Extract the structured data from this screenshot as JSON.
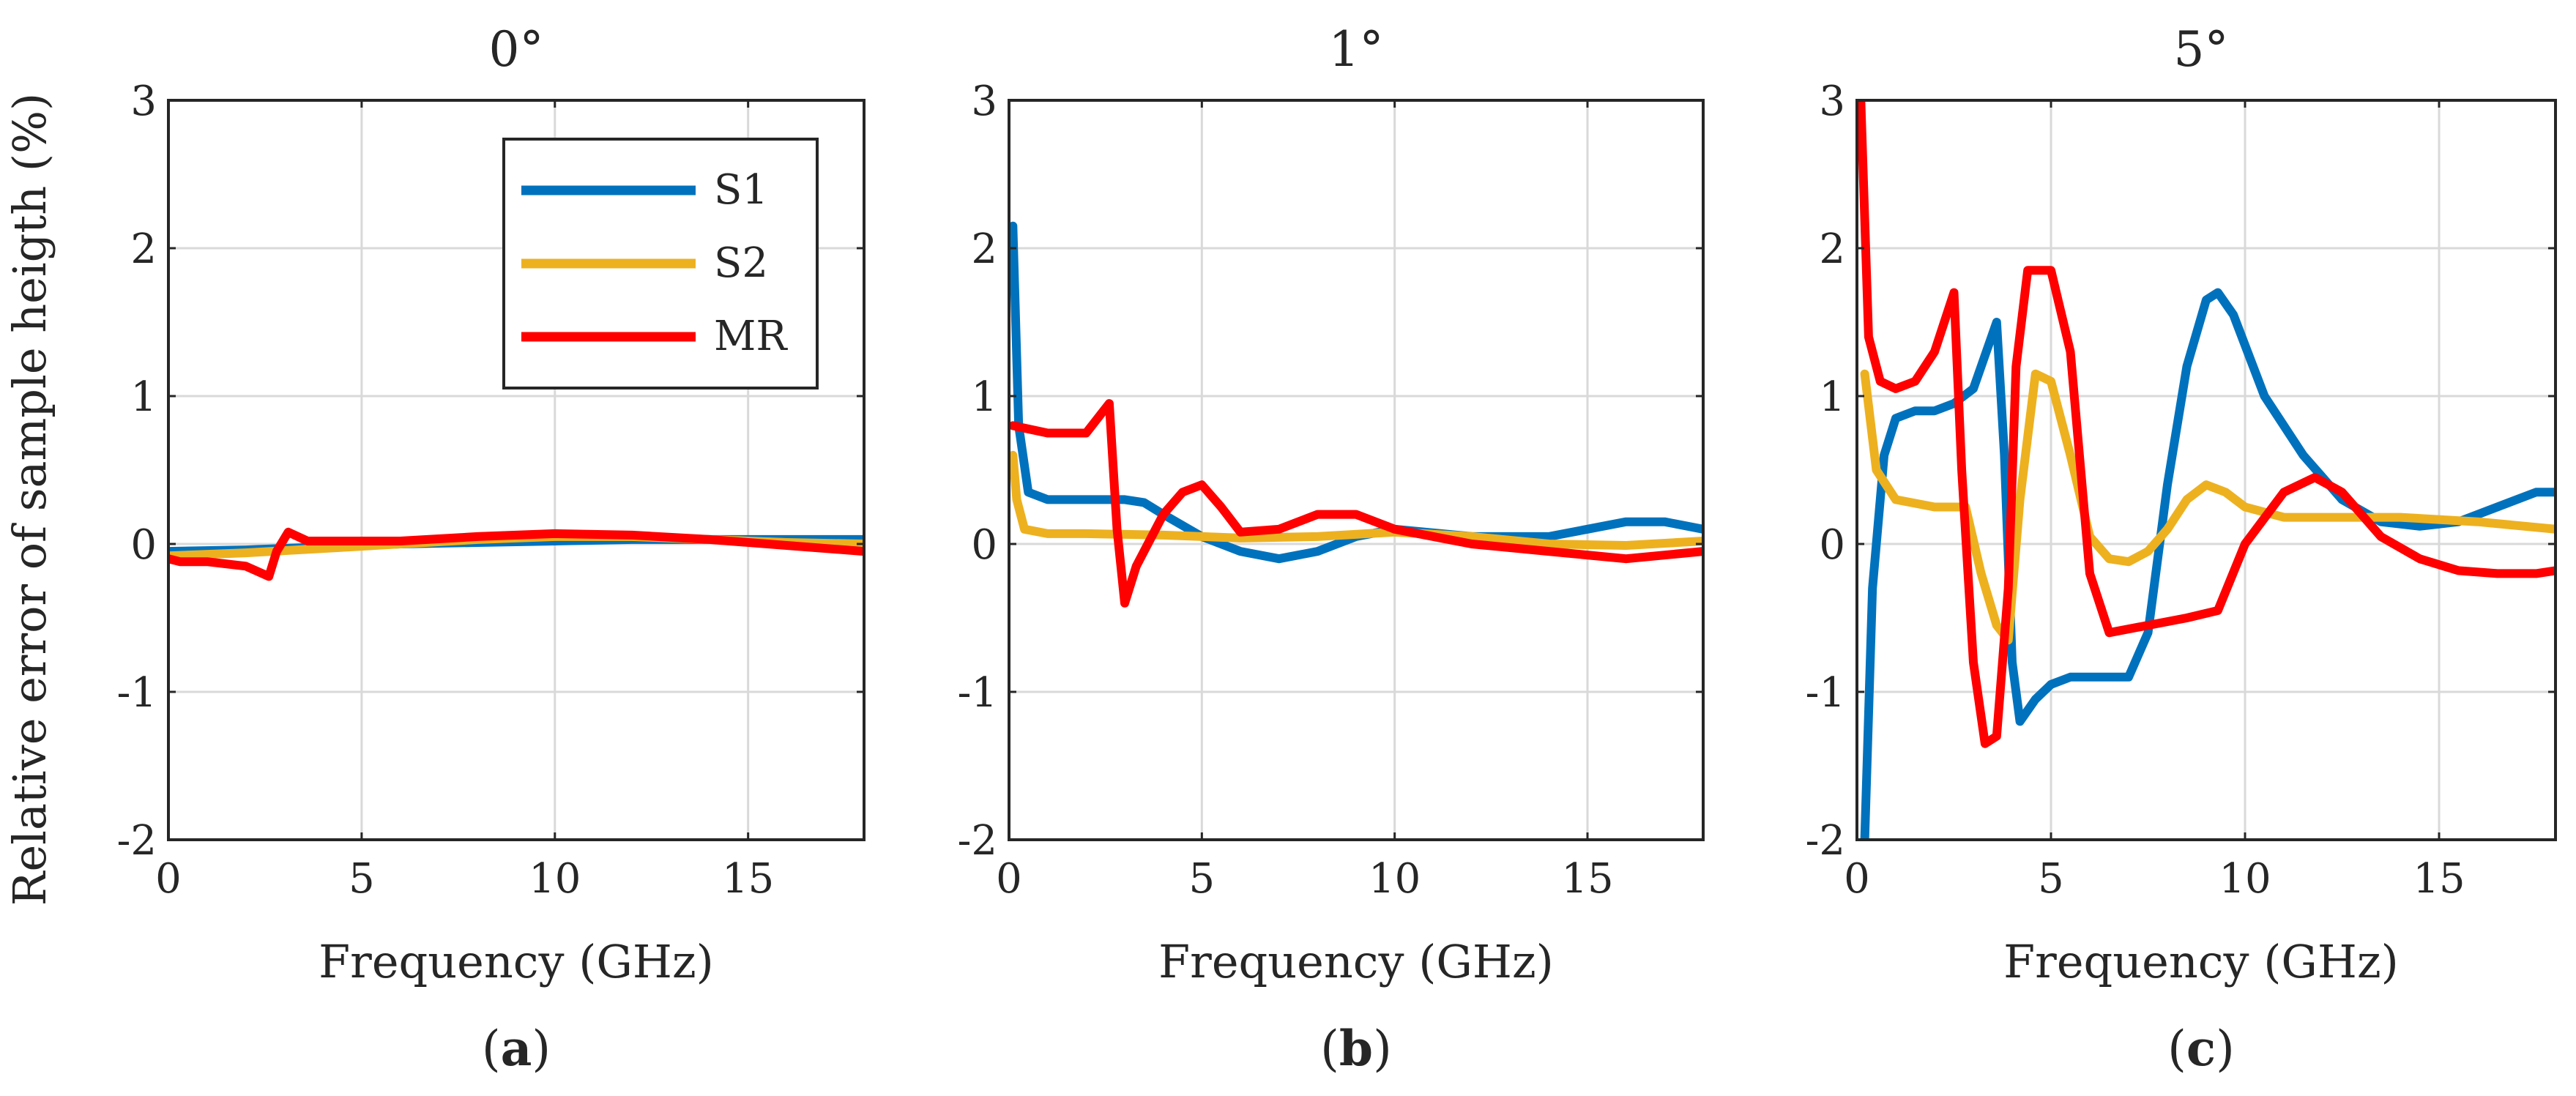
{
  "figure": {
    "ylabel": "Relative error of sample heigth (%)",
    "xlabel": "Frequency (GHz)"
  },
  "colors": {
    "S1": "#0072BD",
    "S2": "#EDB120",
    "MR": "#FF0000",
    "grid": "#d9d9d9",
    "axis": "#262626"
  },
  "chart_data": [
    {
      "type": "line",
      "title": "0°",
      "panel_label": "a",
      "xlabel": "Frequency (GHz)",
      "ylabel": "Relative error of sample heigth (%)",
      "xlim": [
        0,
        18
      ],
      "ylim": [
        -2,
        3
      ],
      "xticks": [
        0,
        5,
        10,
        15
      ],
      "yticks": [
        -2,
        -1,
        0,
        1,
        2,
        3
      ],
      "grid": true,
      "legend": {
        "position": "top-right",
        "entries": [
          "S1",
          "S2",
          "MR"
        ]
      },
      "series": [
        {
          "name": "S1",
          "x": [
            0,
            2,
            4,
            6,
            8,
            10,
            12,
            14,
            16,
            18
          ],
          "y": [
            -0.05,
            -0.04,
            -0.02,
            0.0,
            0.01,
            0.02,
            0.03,
            0.03,
            0.03,
            0.03
          ]
        },
        {
          "name": "S2",
          "x": [
            0,
            2,
            4,
            6,
            8,
            10,
            12,
            14,
            16,
            18
          ],
          "y": [
            -0.08,
            -0.06,
            -0.03,
            0.0,
            0.03,
            0.05,
            0.05,
            0.03,
            0.01,
            0.0
          ]
        },
        {
          "name": "MR",
          "x": [
            0,
            0.3,
            1,
            2,
            2.6,
            2.8,
            3.1,
            3.6,
            5,
            6,
            8,
            10,
            12,
            14,
            16,
            18
          ],
          "y": [
            -0.1,
            -0.12,
            -0.12,
            -0.15,
            -0.22,
            -0.05,
            0.08,
            0.02,
            0.02,
            0.02,
            0.05,
            0.07,
            0.06,
            0.03,
            -0.01,
            -0.05
          ]
        }
      ]
    },
    {
      "type": "line",
      "title": "1°",
      "panel_label": "b",
      "xlabel": "Frequency (GHz)",
      "ylabel": "",
      "xlim": [
        0,
        18
      ],
      "ylim": [
        -2,
        3
      ],
      "xticks": [
        0,
        5,
        10,
        15
      ],
      "yticks": [
        -2,
        -1,
        0,
        1,
        2,
        3
      ],
      "grid": true,
      "series": [
        {
          "name": "S1",
          "x": [
            0.1,
            0.25,
            0.5,
            1,
            2,
            3,
            3.5,
            4,
            5,
            6,
            7,
            8,
            9,
            10,
            12,
            14,
            15,
            16,
            17,
            18
          ],
          "y": [
            2.15,
            0.8,
            0.35,
            0.3,
            0.3,
            0.3,
            0.28,
            0.2,
            0.05,
            -0.05,
            -0.1,
            -0.05,
            0.05,
            0.1,
            0.05,
            0.05,
            0.1,
            0.15,
            0.15,
            0.1
          ]
        },
        {
          "name": "S2",
          "x": [
            0.1,
            0.2,
            0.4,
            1,
            2,
            4,
            6,
            8,
            10,
            12,
            14,
            16,
            18
          ],
          "y": [
            0.6,
            0.3,
            0.1,
            0.07,
            0.07,
            0.06,
            0.04,
            0.05,
            0.08,
            0.05,
            0.0,
            -0.01,
            0.02
          ]
        },
        {
          "name": "MR",
          "x": [
            0.1,
            1,
            2,
            2.6,
            2.8,
            3.0,
            3.3,
            4,
            4.5,
            5,
            5.5,
            6,
            7,
            8,
            9,
            10,
            12,
            14,
            16,
            18
          ],
          "y": [
            0.8,
            0.75,
            0.75,
            0.95,
            0.1,
            -0.4,
            -0.15,
            0.2,
            0.35,
            0.4,
            0.25,
            0.08,
            0.1,
            0.2,
            0.2,
            0.1,
            0.0,
            -0.05,
            -0.1,
            -0.05
          ]
        }
      ]
    },
    {
      "type": "line",
      "title": "5°",
      "panel_label": "c",
      "xlabel": "Frequency (GHz)",
      "ylabel": "",
      "xlim": [
        0,
        18
      ],
      "ylim": [
        -2,
        3
      ],
      "xticks": [
        0,
        5,
        10,
        15
      ],
      "yticks": [
        -2,
        -1,
        0,
        1,
        2,
        3
      ],
      "grid": true,
      "series": [
        {
          "name": "S1",
          "x": [
            0.2,
            0.4,
            0.7,
            1.0,
            1.5,
            2.0,
            2.5,
            3.0,
            3.4,
            3.6,
            3.8,
            4.0,
            4.2,
            4.6,
            5.0,
            5.5,
            6.0,
            6.5,
            7.0,
            7.5,
            8.0,
            8.5,
            9.0,
            9.3,
            9.7,
            10.5,
            11.5,
            12.5,
            13.5,
            14.5,
            15.5,
            16.5,
            17.5,
            18
          ],
          "y": [
            -2.0,
            -0.3,
            0.6,
            0.85,
            0.9,
            0.9,
            0.95,
            1.05,
            1.35,
            1.5,
            0.6,
            -0.8,
            -1.2,
            -1.05,
            -0.95,
            -0.9,
            -0.9,
            -0.9,
            -0.9,
            -0.6,
            0.4,
            1.2,
            1.65,
            1.7,
            1.55,
            1.0,
            0.6,
            0.3,
            0.15,
            0.12,
            0.15,
            0.25,
            0.35,
            0.35
          ]
        },
        {
          "name": "S2",
          "x": [
            0.2,
            0.5,
            1.0,
            2.0,
            2.8,
            3.2,
            3.6,
            3.9,
            4.2,
            4.6,
            5.0,
            5.5,
            6.0,
            6.5,
            7.0,
            7.5,
            8.0,
            8.5,
            9.0,
            9.5,
            10.0,
            11.0,
            12.0,
            14.0,
            16.0,
            18.0
          ],
          "y": [
            1.15,
            0.5,
            0.3,
            0.25,
            0.25,
            -0.2,
            -0.55,
            -0.65,
            0.3,
            1.15,
            1.1,
            0.6,
            0.05,
            -0.1,
            -0.12,
            -0.05,
            0.1,
            0.3,
            0.4,
            0.35,
            0.25,
            0.18,
            0.18,
            0.18,
            0.15,
            0.1
          ]
        },
        {
          "name": "MR",
          "x": [
            0.1,
            0.3,
            0.6,
            1.0,
            1.5,
            2.0,
            2.5,
            2.7,
            3.0,
            3.3,
            3.6,
            3.9,
            4.1,
            4.4,
            5.0,
            5.5,
            6.0,
            6.5,
            7.5,
            8.5,
            9.3,
            10.0,
            11.0,
            11.8,
            12.5,
            13.5,
            14.5,
            15.5,
            16.5,
            17.5,
            18
          ],
          "y": [
            3.0,
            1.4,
            1.1,
            1.05,
            1.1,
            1.3,
            1.7,
            0.5,
            -0.8,
            -1.35,
            -1.3,
            -0.3,
            1.2,
            1.85,
            1.85,
            1.3,
            -0.2,
            -0.6,
            -0.55,
            -0.5,
            -0.45,
            0.0,
            0.35,
            0.45,
            0.35,
            0.05,
            -0.1,
            -0.18,
            -0.2,
            -0.2,
            -0.18
          ]
        }
      ]
    }
  ]
}
